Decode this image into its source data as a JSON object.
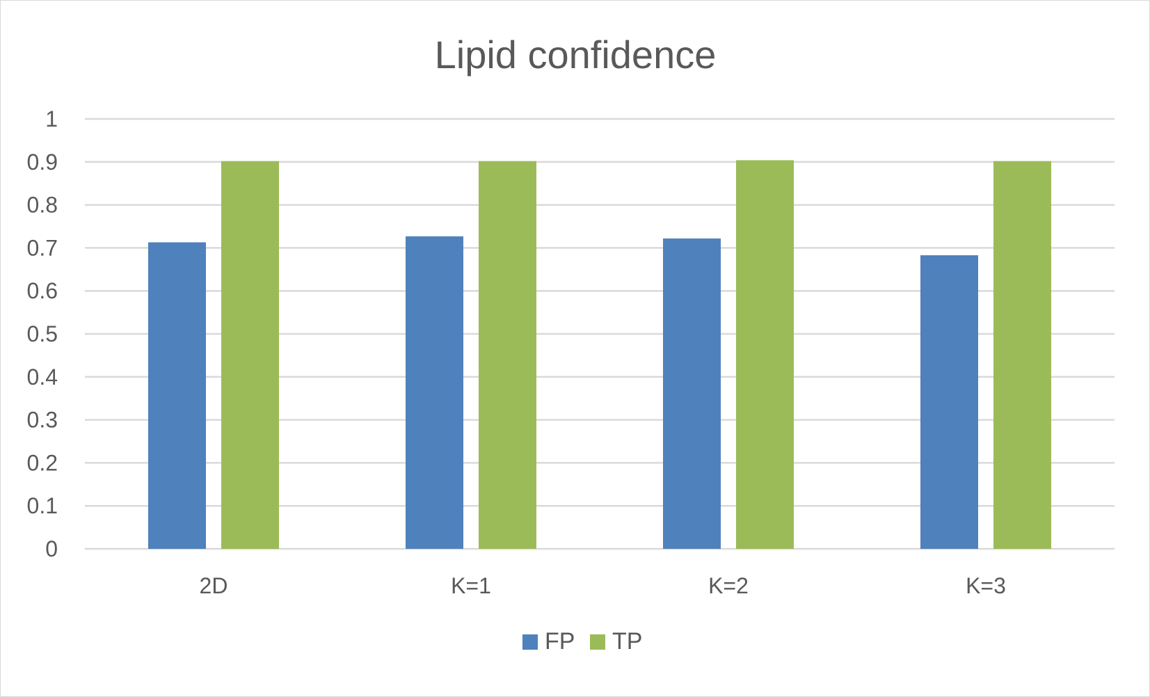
{
  "chart_data": {
    "type": "bar",
    "title": "Lipid confidence",
    "xlabel": "",
    "ylabel": "",
    "categories": [
      "2D",
      "K=1",
      "K=2",
      "K=3"
    ],
    "series": [
      {
        "name": "FP",
        "color": "#4f81bd",
        "values": [
          0.713,
          0.727,
          0.722,
          0.683
        ]
      },
      {
        "name": "TP",
        "color": "#9bbb59",
        "values": [
          0.902,
          0.902,
          0.904,
          0.902
        ]
      }
    ],
    "ylim": [
      0,
      1
    ],
    "yticks": [
      "0",
      "0.1",
      "0.2",
      "0.3",
      "0.4",
      "0.5",
      "0.6",
      "0.7",
      "0.8",
      "0.9",
      "1"
    ],
    "grid": true,
    "legend_position": "bottom-center"
  }
}
